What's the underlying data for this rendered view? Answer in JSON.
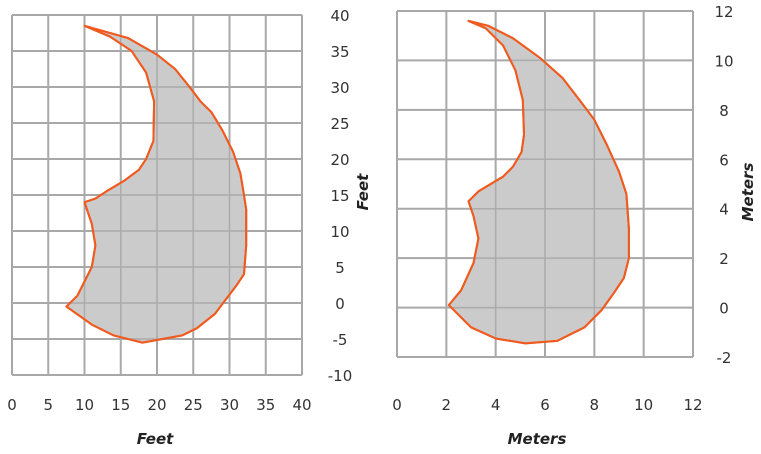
{
  "chart_data": [
    {
      "type": "area",
      "name": "feet-panel",
      "xlabel": "Feet",
      "ylabel": "Feet",
      "xlim": [
        0,
        40
      ],
      "ylim": [
        -10,
        40
      ],
      "x_ticks": [
        "0",
        "5",
        "10",
        "15",
        "20",
        "25",
        "30",
        "35",
        "40"
      ],
      "y_ticks": [
        "40",
        "35",
        "30",
        "25",
        "20",
        "15",
        "10",
        "5",
        "0",
        "-5",
        "-10"
      ],
      "grid": true,
      "shape_points": [
        [
          10,
          38.5
        ],
        [
          13.5,
          37
        ],
        [
          16.5,
          35
        ],
        [
          18.5,
          32
        ],
        [
          19.6,
          28
        ],
        [
          19.5,
          22.5
        ],
        [
          18.5,
          20
        ],
        [
          17.5,
          18.5
        ],
        [
          15.5,
          17
        ],
        [
          13,
          15.5
        ],
        [
          11.5,
          14.5
        ],
        [
          10,
          14
        ],
        [
          11,
          11
        ],
        [
          11.5,
          8
        ],
        [
          11,
          5
        ],
        [
          9,
          1
        ],
        [
          7.5,
          -0.5
        ],
        [
          11,
          -3
        ],
        [
          14,
          -4.5
        ],
        [
          18,
          -5.5
        ],
        [
          23.5,
          -4.5
        ],
        [
          25.5,
          -3.5
        ],
        [
          28,
          -1.5
        ],
        [
          29.5,
          0.5
        ],
        [
          31,
          2.5
        ],
        [
          32,
          4
        ],
        [
          32.3,
          8
        ],
        [
          32.3,
          13
        ],
        [
          32,
          15
        ],
        [
          31.5,
          18
        ],
        [
          30.5,
          21
        ],
        [
          29,
          24
        ],
        [
          27.5,
          26.5
        ],
        [
          26,
          28
        ],
        [
          24.5,
          30
        ],
        [
          22.5,
          32.5
        ],
        [
          20,
          34.5
        ],
        [
          16,
          36.8
        ],
        [
          10,
          38.5
        ]
      ],
      "fill_color": "#c8c8c8",
      "line_color": "#f05a1e",
      "grid_color": "#a8a8a8"
    },
    {
      "type": "area",
      "name": "meters-panel",
      "xlabel": "Meters",
      "ylabel": "Meters",
      "xlim": [
        0,
        12
      ],
      "ylim": [
        -2,
        12
      ],
      "x_ticks": [
        "0",
        "2",
        "4",
        "6",
        "8",
        "10",
        "12"
      ],
      "y_ticks": [
        "12",
        "10",
        "8",
        "6",
        "4",
        "2",
        "0",
        "-2"
      ],
      "grid": true,
      "shape_points": [
        [
          2.9,
          11.6
        ],
        [
          3.6,
          11.3
        ],
        [
          4.3,
          10.6
        ],
        [
          4.8,
          9.6
        ],
        [
          5.1,
          8.4
        ],
        [
          5.15,
          7.0
        ],
        [
          5.05,
          6.3
        ],
        [
          4.7,
          5.7
        ],
        [
          4.3,
          5.3
        ],
        [
          3.8,
          5.0
        ],
        [
          3.3,
          4.7
        ],
        [
          2.9,
          4.3
        ],
        [
          3.1,
          3.7
        ],
        [
          3.3,
          2.8
        ],
        [
          3.1,
          1.8
        ],
        [
          2.6,
          0.7
        ],
        [
          2.1,
          0.1
        ],
        [
          3.0,
          -0.8
        ],
        [
          4.0,
          -1.25
        ],
        [
          5.2,
          -1.45
        ],
        [
          6.5,
          -1.35
        ],
        [
          7.6,
          -0.8
        ],
        [
          8.3,
          -0.1
        ],
        [
          8.8,
          0.6
        ],
        [
          9.2,
          1.2
        ],
        [
          9.4,
          2.0
        ],
        [
          9.4,
          3.2
        ],
        [
          9.3,
          4.6
        ],
        [
          9.0,
          5.5
        ],
        [
          8.5,
          6.6
        ],
        [
          8.0,
          7.6
        ],
        [
          7.4,
          8.4
        ],
        [
          6.7,
          9.3
        ],
        [
          5.8,
          10.1
        ],
        [
          4.7,
          10.9
        ],
        [
          3.7,
          11.4
        ],
        [
          2.9,
          11.6
        ]
      ],
      "fill_color": "#c8c8c8",
      "line_color": "#f05a1e",
      "grid_color": "#a8a8a8"
    }
  ]
}
